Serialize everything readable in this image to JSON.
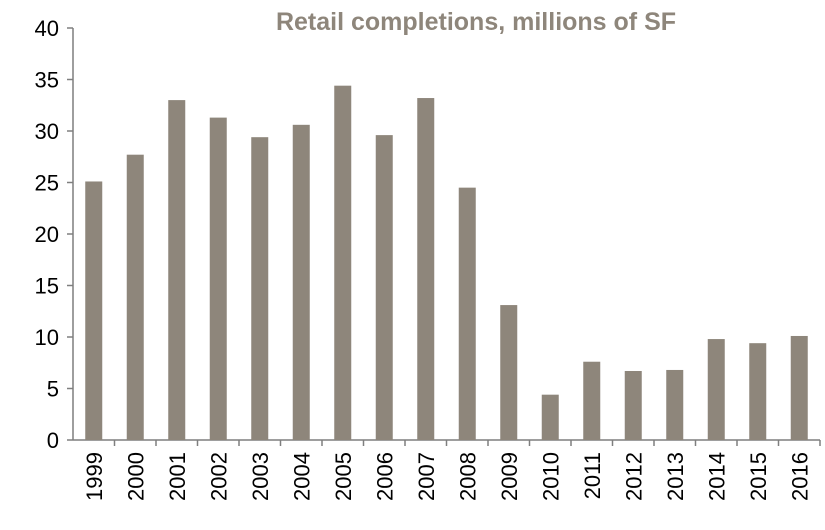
{
  "colors": {
    "bar": "#8e867b",
    "title": "#8e867b",
    "axis": "#7f7f7f"
  },
  "chart_data": {
    "type": "bar",
    "title": "Retail completions, millions of SF",
    "xlabel": "",
    "ylabel": "",
    "ylim": [
      0,
      40
    ],
    "yticks": [
      0,
      5,
      10,
      15,
      20,
      25,
      30,
      35,
      40
    ],
    "grid": false,
    "legend": "none",
    "categories": [
      "1999",
      "2000",
      "2001",
      "2002",
      "2003",
      "2004",
      "2005",
      "2006",
      "2007",
      "2008",
      "2009",
      "2010",
      "2011",
      "2012",
      "2013",
      "2014",
      "2015",
      "2016"
    ],
    "values": [
      25.1,
      27.7,
      33.0,
      31.3,
      29.4,
      30.6,
      34.4,
      29.6,
      33.2,
      24.5,
      13.1,
      4.4,
      7.6,
      6.7,
      6.8,
      9.8,
      9.4,
      10.1
    ]
  }
}
